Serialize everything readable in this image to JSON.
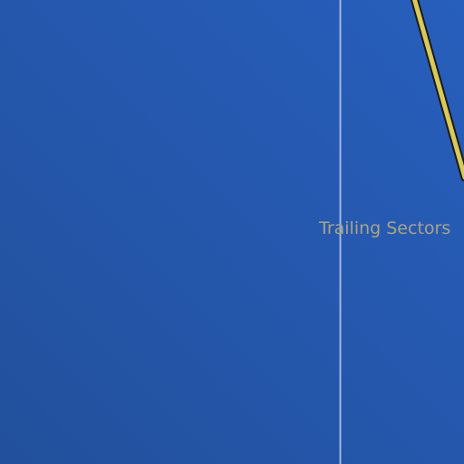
{
  "chart_data": {
    "type": "line",
    "title": "",
    "xlabel": "",
    "ylabel": "",
    "annotations": [
      {
        "text": "Trailing Sectors",
        "kind": "region-label"
      }
    ],
    "reference_lines": [
      {
        "orientation": "vertical",
        "color": "#b9c6e6"
      }
    ],
    "series": [
      {
        "color": "#d8c95a",
        "outline": "#1a1a1a"
      }
    ],
    "grid": false,
    "legend": "none"
  },
  "colors": {
    "background_dark": "#22509c",
    "background_light": "#275fbc",
    "series_line": "#d8c95a",
    "label_text": "#a8a487",
    "reference_line": "#b9c6e6"
  }
}
